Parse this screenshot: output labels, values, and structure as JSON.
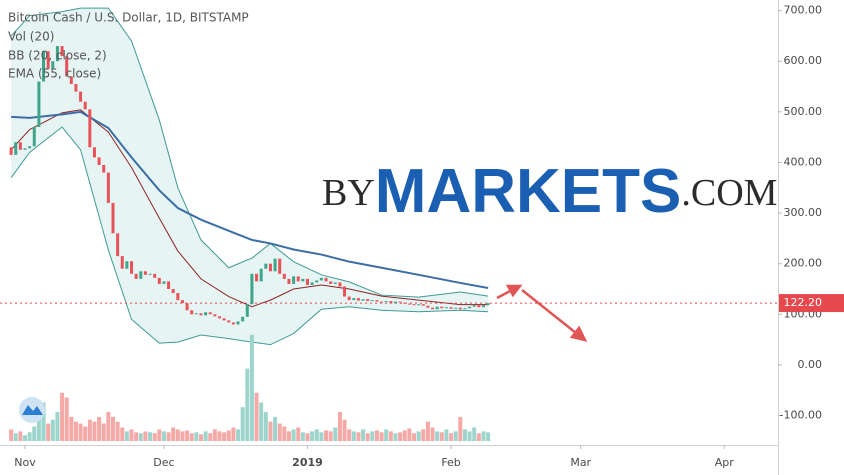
{
  "chart_data": {
    "type": "candlestick",
    "title": "Bitcoin Cash / U.S. Dollar, 1D, BITSTAMP",
    "indicators": [
      "Vol (20)",
      "BB (20, close, 2)",
      "EMA (55, close)"
    ],
    "x": [
      -3,
      -2,
      -1,
      0,
      1,
      2,
      3,
      4,
      5,
      6,
      7,
      8,
      9,
      10,
      11,
      12,
      13,
      14,
      15,
      16,
      17,
      18,
      19,
      20,
      21,
      22,
      23,
      24,
      25,
      26,
      27,
      28,
      29,
      30,
      31,
      32,
      33,
      34,
      35,
      36,
      37,
      38,
      39,
      40,
      41,
      42,
      43,
      44,
      45,
      46,
      47,
      48,
      49,
      50,
      51,
      52,
      53,
      54,
      55,
      56,
      57,
      58,
      59,
      60,
      61,
      62,
      63,
      64,
      65,
      66,
      67,
      68,
      69,
      70,
      71,
      72,
      73,
      74,
      75,
      76,
      77,
      78,
      79,
      80,
      81,
      82,
      83,
      84,
      85,
      86,
      87,
      88,
      89,
      90,
      91,
      92,
      93,
      94,
      95,
      96,
      97,
      98,
      99,
      100
    ],
    "open": [
      430,
      415,
      440,
      425,
      428,
      432,
      470,
      560,
      620,
      585,
      600,
      630,
      610,
      570,
      555,
      540,
      520,
      505,
      430,
      410,
      395,
      380,
      320,
      260,
      215,
      190,
      205,
      180,
      170,
      185,
      178,
      180,
      172,
      160,
      165,
      150,
      142,
      128,
      122,
      108,
      100,
      102,
      98,
      104,
      100,
      96,
      92,
      88,
      84,
      80,
      86,
      95,
      120,
      180,
      165,
      190,
      200,
      185,
      210,
      180,
      170,
      160,
      175,
      165,
      170,
      158,
      163,
      167,
      172,
      165,
      160,
      163,
      155,
      135,
      128,
      132,
      127,
      130,
      126,
      128,
      125,
      124,
      126,
      122,
      125,
      123,
      121,
      120,
      118,
      120,
      117,
      113,
      110,
      115,
      112,
      114,
      111,
      113,
      110,
      112,
      115,
      118,
      114,
      118
    ],
    "close": [
      415,
      440,
      425,
      428,
      432,
      470,
      560,
      620,
      585,
      600,
      630,
      610,
      570,
      555,
      540,
      520,
      505,
      430,
      410,
      395,
      380,
      320,
      260,
      215,
      190,
      205,
      180,
      170,
      185,
      178,
      180,
      172,
      160,
      165,
      150,
      142,
      128,
      122,
      108,
      100,
      102,
      98,
      104,
      100,
      96,
      92,
      88,
      84,
      80,
      86,
      95,
      120,
      180,
      165,
      190,
      200,
      185,
      210,
      180,
      170,
      160,
      175,
      165,
      170,
      158,
      163,
      167,
      172,
      165,
      160,
      163,
      155,
      135,
      128,
      132,
      127,
      130,
      126,
      128,
      125,
      124,
      126,
      122,
      125,
      123,
      121,
      120,
      118,
      120,
      117,
      113,
      110,
      115,
      112,
      114,
      111,
      113,
      110,
      112,
      115,
      118,
      114,
      118,
      122.2
    ],
    "up_color": "#3fa58a",
    "down_color": "#e8535a",
    "volume": {
      "values": [
        12,
        8,
        10,
        6,
        9,
        15,
        28,
        40,
        18,
        22,
        30,
        50,
        45,
        25,
        20,
        18,
        15,
        22,
        20,
        25,
        18,
        30,
        25,
        20,
        14,
        10,
        12,
        9,
        8,
        10,
        9,
        8,
        12,
        10,
        9,
        14,
        12,
        10,
        11,
        8,
        9,
        7,
        10,
        8,
        12,
        10,
        9,
        11,
        14,
        12,
        35,
        75,
        110,
        50,
        40,
        30,
        20,
        25,
        18,
        15,
        10,
        12,
        14,
        9,
        8,
        10,
        12,
        9,
        11,
        10,
        14,
        30,
        22,
        12,
        10,
        9,
        12,
        8,
        10,
        11,
        9,
        12,
        10,
        8,
        9,
        11,
        13,
        8,
        10,
        12,
        20,
        14,
        10,
        9,
        12,
        8,
        10,
        25,
        12,
        10,
        14,
        8,
        10,
        9
      ],
      "ylim": [
        0,
        115
      ],
      "up_color": "#9dd5cc",
      "down_color": "#f4a9a7"
    },
    "bands": {
      "x": [
        -3,
        1,
        8,
        12,
        18,
        23,
        29,
        33,
        38,
        44,
        49,
        53,
        58,
        64,
        70,
        77,
        85,
        94,
        100
      ],
      "upper": [
        650,
        690,
        698,
        705,
        705,
        640,
        484,
        350,
        247,
        192,
        211,
        240,
        204,
        178,
        164,
        138,
        134,
        144,
        136
      ],
      "basis": [
        425,
        465,
        498,
        504,
        460,
        390,
        290,
        225,
        170,
        135,
        115,
        128,
        150,
        158,
        150,
        136,
        128,
        119,
        119
      ],
      "lower": [
        370,
        420,
        470,
        425,
        227,
        90,
        43,
        45,
        59,
        52,
        45,
        40,
        62,
        110,
        115,
        108,
        105,
        108,
        105
      ],
      "line_color": "#3f9a96",
      "basis_color": "#8e2525",
      "fill": "#e6f4f3"
    },
    "ema": {
      "x": [
        -3,
        1,
        8,
        12,
        18,
        23,
        29,
        33,
        38,
        44,
        49,
        53,
        58,
        64,
        70,
        77,
        85,
        94,
        100
      ],
      "values": [
        490,
        488,
        495,
        500,
        468,
        410,
        345,
        310,
        287,
        265,
        247,
        240,
        228,
        218,
        204,
        192,
        178,
        162,
        152
      ],
      "color": "#3b6ea5"
    },
    "last_price": {
      "value": 122.2,
      "label": "122.20",
      "color": "#e5484d"
    },
    "xlim": [
      -5.4,
      162.6
    ],
    "ylim": [
      -178,
      721
    ],
    "xticks": [
      {
        "value": 0,
        "label": "Nov"
      },
      {
        "value": 30,
        "label": "Dec"
      },
      {
        "value": 61,
        "label": "2019"
      },
      {
        "value": 92,
        "label": "Feb"
      },
      {
        "value": 120,
        "label": "Mar"
      },
      {
        "value": 151,
        "label": "Apr"
      }
    ],
    "yticks": [
      {
        "value": 700,
        "label": "700.00"
      },
      {
        "value": 600,
        "label": "600.00"
      },
      {
        "value": 500,
        "label": "500.00"
      },
      {
        "value": 400,
        "label": "400.00"
      },
      {
        "value": 300,
        "label": "300.00"
      },
      {
        "value": 200,
        "label": "200.00"
      },
      {
        "value": 100,
        "label": "100.00"
      },
      {
        "value": 0,
        "label": "0.00"
      },
      {
        "value": -100,
        "label": "-100.00"
      }
    ],
    "watermark": [
      "BY",
      "MARKETS",
      ".COM"
    ]
  }
}
